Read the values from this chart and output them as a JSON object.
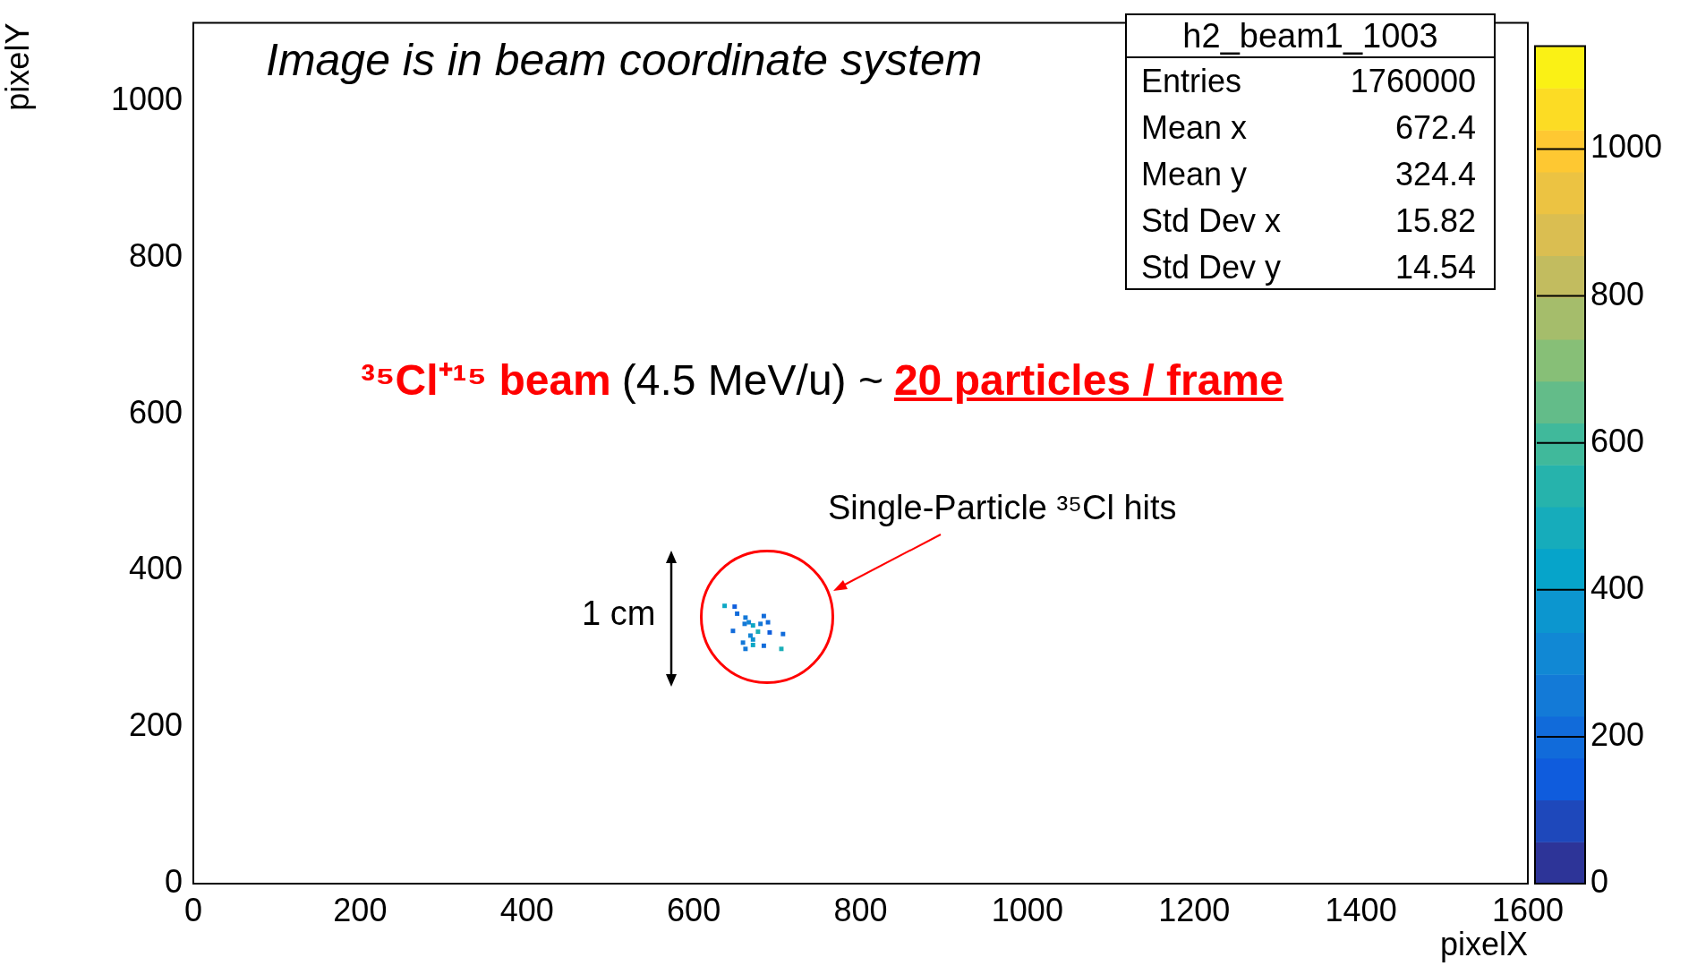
{
  "chart_data": {
    "type": "scatter",
    "xlabel": "pixelX",
    "ylabel": "pixelY",
    "x": [
      637,
      649,
      652,
      662,
      684,
      661,
      671,
      680,
      689,
      647,
      677,
      691,
      707,
      668,
      671,
      659,
      684,
      671,
      662,
      705,
      666
    ],
    "values": [
      355,
      354,
      345,
      340,
      342,
      332,
      330,
      332,
      334,
      323,
      322,
      321,
      319,
      317,
      312,
      308,
      304,
      305,
      300,
      300,
      334
    ],
    "cvalues": [
      450,
      150,
      200,
      250,
      200,
      250,
      450,
      250,
      200,
      200,
      500,
      150,
      200,
      300,
      350,
      250,
      200,
      450,
      250,
      500,
      300
    ],
    "marker": "square",
    "xlim": [
      0,
      1600
    ],
    "xticks": [
      0,
      200,
      400,
      600,
      800,
      1000,
      1200,
      1400,
      1600
    ],
    "ylim": [
      0,
      1100
    ],
    "yticks": [
      0,
      200,
      400,
      600,
      800,
      1000
    ],
    "clim": [
      0,
      1140
    ],
    "cticks": [
      0,
      200,
      400,
      600,
      800,
      1000
    ],
    "annotations": [
      "Image is in beam coordinate system",
      "³⁵Cl⁺¹⁵ beam",
      "(4.5 MeV/u) ~",
      "20 particles / frame",
      "Single-Particle ³⁵Cl hits",
      "1 cm",
      "h2_beam1_1003",
      "Entries",
      "1760000",
      "Mean x",
      "672.4",
      "Mean y",
      "324.4",
      "Std Dev x",
      "15.82",
      "Std Dev y",
      "14.54"
    ]
  }
}
